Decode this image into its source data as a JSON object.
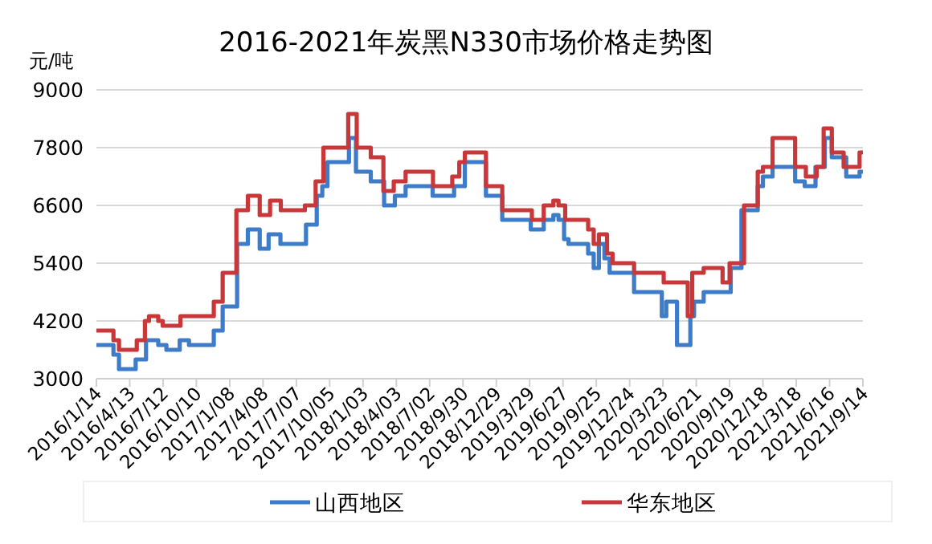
{
  "chart_data": {
    "type": "step",
    "title": "2016-2021年炭黑N330市场价格走势图",
    "ylabel": "元/吨",
    "xlim": [
      "2016-01-14",
      "2021-09-14"
    ],
    "xticks": [
      {
        "value": "2016-01-14",
        "label": "2016/1/14"
      },
      {
        "value": "2016-04-13",
        "label": "2016/4/13"
      },
      {
        "value": "2016-07-12",
        "label": "2016/7/12"
      },
      {
        "value": "2016-10-10",
        "label": "2016/10/10"
      },
      {
        "value": "2017-01-08",
        "label": "2017/1/08"
      },
      {
        "value": "2017-04-08",
        "label": "2017/4/08"
      },
      {
        "value": "2017-07-07",
        "label": "2017/7/07"
      },
      {
        "value": "2017-10-05",
        "label": "2017/10/05"
      },
      {
        "value": "2018-01-03",
        "label": "2018/1/03"
      },
      {
        "value": "2018-04-03",
        "label": "2018/4/03"
      },
      {
        "value": "2018-07-02",
        "label": "2018/7/02"
      },
      {
        "value": "2018-09-30",
        "label": "2018/9/30"
      },
      {
        "value": "2018-12-29",
        "label": "2018/12/29"
      },
      {
        "value": "2019-03-29",
        "label": "2019/3/29"
      },
      {
        "value": "2019-06-27",
        "label": "2019/6/27"
      },
      {
        "value": "2019-09-25",
        "label": "2019/9/25"
      },
      {
        "value": "2019-12-24",
        "label": "2019/12/24"
      },
      {
        "value": "2020-03-23",
        "label": "2020/3/23"
      },
      {
        "value": "2020-06-21",
        "label": "2020/6/21"
      },
      {
        "value": "2020-09-19",
        "label": "2020/9/19"
      },
      {
        "value": "2020-12-18",
        "label": "2020/12/18"
      },
      {
        "value": "2021-03-18",
        "label": "2021/3/18"
      },
      {
        "value": "2021-06-16",
        "label": "2021/6/16"
      },
      {
        "value": "2021-09-14",
        "label": "2021/9/14"
      }
    ],
    "ylim": [
      3000,
      9000
    ],
    "yticks": [
      3000,
      4200,
      5400,
      6600,
      7800,
      9000
    ],
    "grid": "y",
    "legend": "bottom",
    "marker": "none",
    "line_style": "solid",
    "series": [
      {
        "name": "山西地区",
        "color": "#3d7cc9",
        "x": [
          "2016-01-14",
          "2016-02-29",
          "2016-03-15",
          "2016-04-29",
          "2016-05-27",
          "2016-06-29",
          "2016-07-21",
          "2016-08-26",
          "2016-09-20",
          "2016-11-26",
          "2016-12-20",
          "2017-01-28",
          "2017-02-26",
          "2017-03-30",
          "2017-04-23",
          "2017-05-25",
          "2017-08-02",
          "2017-08-31",
          "2017-09-15",
          "2017-09-29",
          "2017-11-26",
          "2017-12-15",
          "2018-01-24",
          "2018-03-01",
          "2018-03-30",
          "2018-04-28",
          "2018-07-10",
          "2018-09-06",
          "2018-10-05",
          "2018-12-01",
          "2019-01-14",
          "2019-04-01",
          "2019-05-06",
          "2019-06-01",
          "2019-06-15",
          "2019-06-30",
          "2019-07-12",
          "2019-09-03",
          "2019-09-18",
          "2019-10-02",
          "2019-10-17",
          "2019-10-31",
          "2020-01-05",
          "2020-03-20",
          "2020-04-01",
          "2020-04-30",
          "2020-06-05",
          "2020-06-15",
          "2020-07-11",
          "2020-09-22",
          "2020-10-21",
          "2020-12-04",
          "2020-12-18",
          "2021-01-13",
          "2021-03-15",
          "2021-04-10",
          "2021-05-09",
          "2021-06-03",
          "2021-06-22",
          "2021-07-31",
          "2021-09-05",
          "2021-09-14"
        ],
        "values": [
          3700,
          3500,
          3200,
          3400,
          3800,
          3700,
          3600,
          3800,
          3700,
          4000,
          4500,
          5800,
          6100,
          5700,
          6000,
          5800,
          6200,
          6800,
          7000,
          7500,
          8000,
          7300,
          7100,
          6600,
          6800,
          7000,
          6800,
          7000,
          7500,
          6800,
          6300,
          6100,
          6300,
          6400,
          6300,
          5900,
          5800,
          5600,
          5300,
          5800,
          5500,
          5200,
          4800,
          4300,
          4600,
          3700,
          4300,
          4600,
          4800,
          5300,
          6500,
          7000,
          7200,
          7400,
          7100,
          7000,
          7400,
          8000,
          7600,
          7200,
          7300,
          7300
        ]
      },
      {
        "name": "华东地区",
        "color": "#c8383a",
        "x": [
          "2016-01-14",
          "2016-02-29",
          "2016-03-15",
          "2016-05-02",
          "2016-05-24",
          "2016-06-04",
          "2016-06-29",
          "2016-07-11",
          "2016-08-28",
          "2016-11-26",
          "2016-12-20",
          "2017-01-26",
          "2017-02-26",
          "2017-03-30",
          "2017-04-27",
          "2017-05-26",
          "2017-07-30",
          "2017-08-28",
          "2017-09-18",
          "2017-11-24",
          "2017-12-17",
          "2018-01-24",
          "2018-02-27",
          "2018-03-27",
          "2018-04-28",
          "2018-07-11",
          "2018-09-01",
          "2018-09-20",
          "2018-10-05",
          "2018-12-01",
          "2019-01-14",
          "2019-04-04",
          "2019-05-06",
          "2019-06-01",
          "2019-06-15",
          "2019-07-03",
          "2019-09-03",
          "2019-09-18",
          "2019-10-02",
          "2019-10-24",
          "2019-11-08",
          "2020-01-05",
          "2020-03-25",
          "2020-05-29",
          "2020-06-10",
          "2020-07-11",
          "2020-08-31",
          "2020-09-19",
          "2020-10-28",
          "2020-12-04",
          "2020-12-18",
          "2021-01-13",
          "2021-03-15",
          "2021-04-13",
          "2021-05-12",
          "2021-05-31",
          "2021-06-22",
          "2021-07-24",
          "2021-09-05",
          "2021-09-14"
        ],
        "values": [
          4000,
          3800,
          3600,
          3800,
          4200,
          4300,
          4200,
          4100,
          4300,
          4600,
          5200,
          6500,
          6800,
          6400,
          6700,
          6500,
          6600,
          7100,
          7800,
          8500,
          7800,
          7600,
          6900,
          7100,
          7300,
          7000,
          7200,
          7500,
          7700,
          7000,
          6500,
          6300,
          6600,
          6700,
          6600,
          6300,
          6100,
          5800,
          6000,
          5600,
          5400,
          5200,
          5000,
          4300,
          5200,
          5300,
          5000,
          5400,
          6600,
          7300,
          7400,
          8000,
          7400,
          7200,
          7400,
          8200,
          7700,
          7400,
          7700,
          7700
        ]
      }
    ]
  }
}
